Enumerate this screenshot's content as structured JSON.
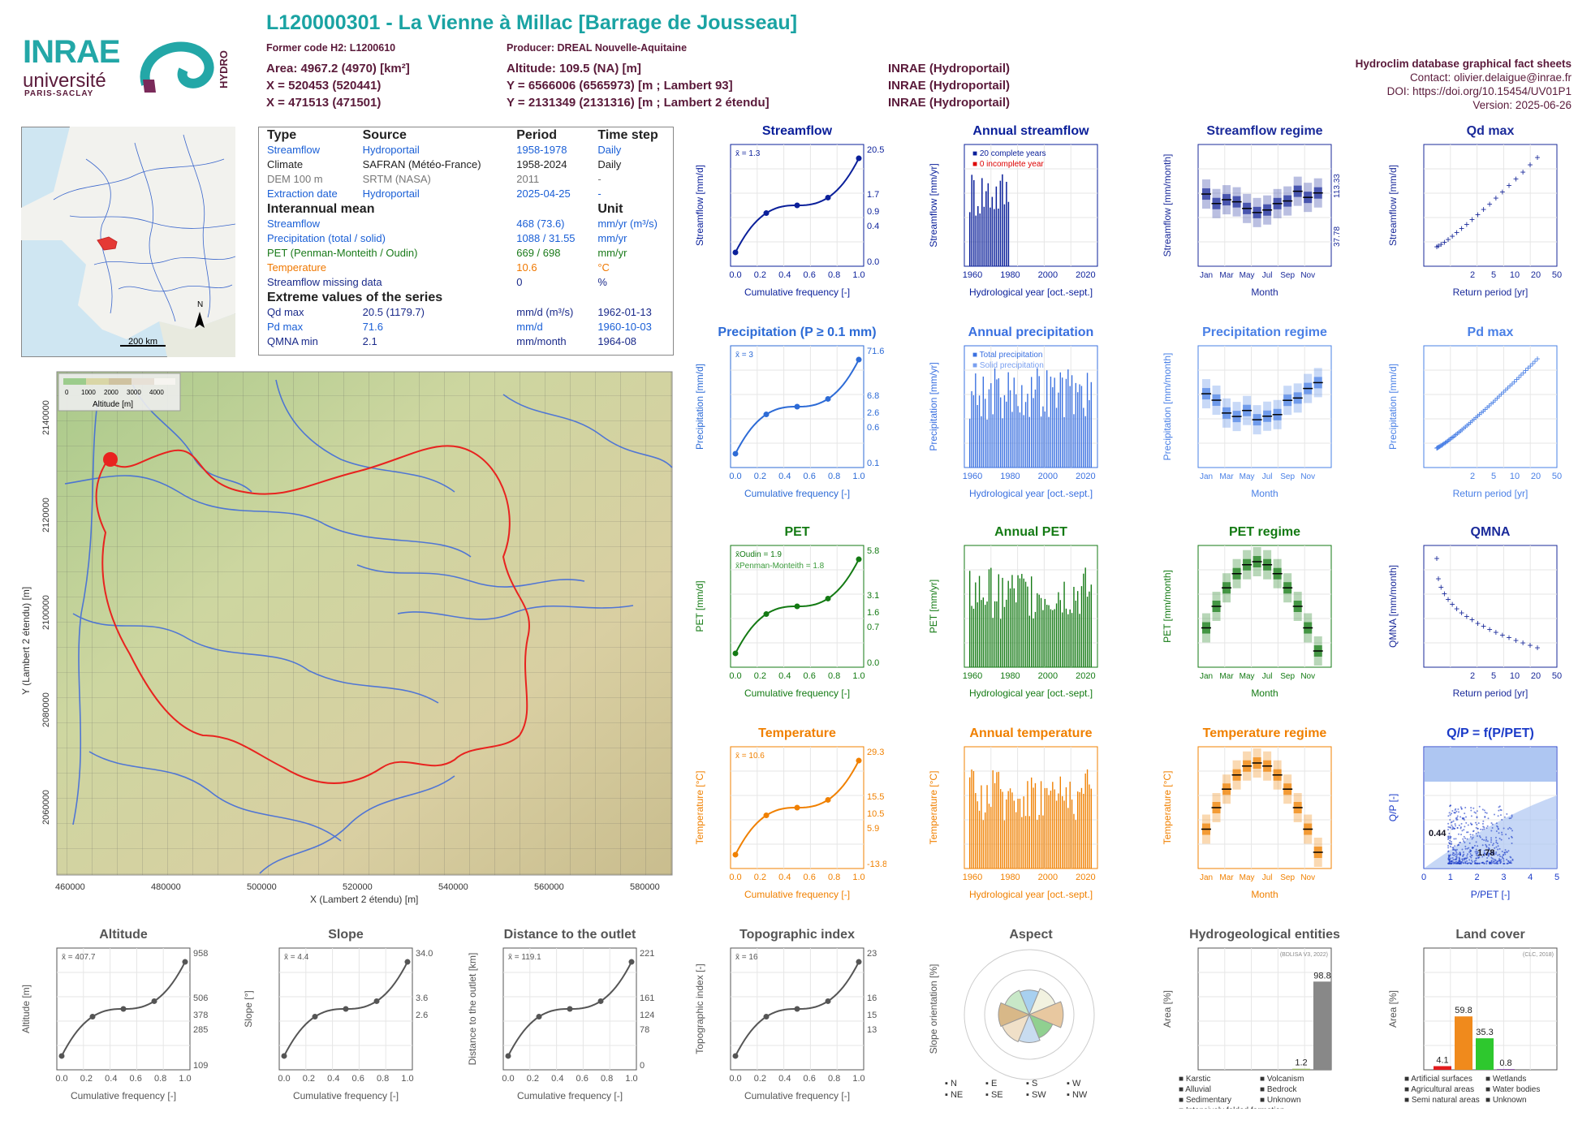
{
  "header": {
    "title": "L120000301 - La Vienne à Millac [Barrage de Jousseau]",
    "former_code": "Former code H2: L1200610",
    "producer": "Producer: DREAL Nouvelle-Aquitaine",
    "area": "Area: 4967.2 (4970) [km²]",
    "altitude": "Altitude: 109.5 (NA) [m]",
    "x93": "X = 520453 (520441)",
    "y93": "Y = 6566006 (6565973) [m ; Lambert 93]",
    "x2": "X = 471513 (471501)",
    "y2": "Y = 2131349 (2131316) [m ; Lambert 2 étendu]",
    "src1": "INRAE (Hydroportail)",
    "src2": "INRAE (Hydroportail)",
    "src3": "INRAE (Hydroportail)",
    "db": "Hydroclim database graphical fact sheets",
    "contact": "Contact: olivier.delaigue@inrae.fr",
    "doi": "DOI: https://doi.org/10.15454/UV01P1",
    "version": "Version: 2025-06-26"
  },
  "logos": {
    "inrae": "INRAE",
    "universite": "université",
    "paris_saclay": "PARIS-SACLAY",
    "hydro": "HYDRO"
  },
  "locmap": {
    "scale": "200 km",
    "north": "N"
  },
  "info": {
    "h_type": "Type",
    "h_source": "Source",
    "h_period": "Period",
    "h_step": "Time step",
    "rows": [
      {
        "type": "Streamflow",
        "source": "Hydroportail",
        "period": "1958-1978",
        "step": "Daily"
      },
      {
        "type": "Climate",
        "source": "SAFRAN (Météo-France)",
        "period": "1958-2024",
        "step": "Daily"
      },
      {
        "type": "DEM 100 m",
        "source": "SRTM (NASA)",
        "period": "2011",
        "step": "-"
      },
      {
        "type": "Extraction date",
        "source": "Hydroportail",
        "period": "2025-04-25",
        "step": "-"
      }
    ],
    "h_mean": "Interannual mean",
    "h_unit": "Unit",
    "means": [
      {
        "label": "Streamflow",
        "value": "468 (73.6)",
        "unit": "mm/yr (m³/s)"
      },
      {
        "label": "Precipitation (total / solid)",
        "value": "1088 / 31.55",
        "unit": "mm/yr"
      },
      {
        "label": "PET (Penman-Monteith / Oudin)",
        "value": "669 / 698",
        "unit": "mm/yr"
      },
      {
        "label": "Temperature",
        "value": "10.6",
        "unit": "°C"
      },
      {
        "label": "Streamflow missing data",
        "value": "0",
        "unit": "%"
      }
    ],
    "h_extreme": "Extreme values of the series",
    "extremes": [
      {
        "label": "Qd max",
        "value": "20.5 (1179.7)",
        "unit": "mm/d (m³/s)",
        "date": "1962-01-13"
      },
      {
        "label": "Pd max",
        "value": "71.6",
        "unit": "mm/d",
        "date": "1960-10-03"
      },
      {
        "label": "QMNA min",
        "value": "2.1",
        "unit": "mm/month",
        "date": "1964-08"
      }
    ]
  },
  "bigmap": {
    "xlabel": "X (Lambert 2 étendu) [m]",
    "ylabel": "Y (Lambert 2 étendu) [m]",
    "xticks": [
      "460000",
      "480000",
      "500000",
      "520000",
      "540000",
      "560000",
      "580000"
    ],
    "yticks": [
      "2060000",
      "2080000",
      "2100000",
      "2120000",
      "2140000"
    ],
    "legend_title": "Altitude [m]",
    "legend_ticks": [
      "0",
      "1000",
      "2000",
      "3000",
      "4000"
    ]
  },
  "chart_data": [
    {
      "id": "streamflow",
      "type": "line",
      "title": "Streamflow",
      "xlabel": "Cumulative frequency [-]",
      "ylabel": "Streamflow [mm/d]",
      "mean": "x̄ = 1.3",
      "right_labels": [
        "20.5",
        "1.7",
        "0.9",
        "0.4",
        "0.0"
      ]
    },
    {
      "id": "annual_streamflow",
      "type": "bar",
      "title": "Annual streamflow",
      "xlabel": "Hydrological year [oct.-sept.]",
      "ylabel": "Streamflow [mm/yr]",
      "legend": [
        "20 complete years",
        "0 incomplete year"
      ]
    },
    {
      "id": "streamflow_regime",
      "type": "box",
      "title": "Streamflow regime",
      "xlabel": "Month",
      "ylabel": "Streamflow [mm/month]",
      "right_ticks": [
        "113.33",
        "37.78"
      ]
    },
    {
      "id": "qd_max",
      "type": "scatter",
      "title": "Qd max",
      "xlabel": "Return period [yr]",
      "ylabel": "Streamflow [mm/d]"
    },
    {
      "id": "precipitation",
      "type": "line",
      "title": "Precipitation (P ≥ 0.1 mm)",
      "xlabel": "Cumulative frequency [-]",
      "ylabel": "Precipitation [mm/d]",
      "mean": "x̄ = 3",
      "right_labels": [
        "71.6",
        "6.8",
        "2.6",
        "0.6",
        "0.1"
      ]
    },
    {
      "id": "annual_precipitation",
      "type": "bar",
      "title": "Annual precipitation",
      "xlabel": "Hydrological year [oct.-sept.]",
      "ylabel": "Precipitation [mm/yr]",
      "legend": [
        "Total precipitation",
        "Solid precipitation"
      ]
    },
    {
      "id": "precipitation_regime",
      "type": "box",
      "title": "Precipitation regime",
      "xlabel": "Month",
      "ylabel": "Precipitation [mm/month]"
    },
    {
      "id": "pd_max",
      "type": "scatter",
      "title": "Pd max",
      "xlabel": "Return period [yr]",
      "ylabel": "Precipitation [mm/d]"
    },
    {
      "id": "pet",
      "type": "line",
      "title": "PET",
      "xlabel": "Cumulative frequency [-]",
      "ylabel": "PET [mm/d]",
      "mean1": "x̄Oudin = 1.9",
      "mean2": "x̄Penman-Monteith = 1.8",
      "right_labels": [
        "5.8",
        "3.1",
        "1.6",
        "0.7",
        "0.0"
      ]
    },
    {
      "id": "annual_pet",
      "type": "bar",
      "title": "Annual PET",
      "xlabel": "Hydrological year [oct.-sept.]",
      "ylabel": "PET [mm/yr]"
    },
    {
      "id": "pet_regime",
      "type": "box",
      "title": "PET regime",
      "xlabel": "Month",
      "ylabel": "PET [mm/month]"
    },
    {
      "id": "qmna",
      "type": "scatter",
      "title": "QMNA",
      "xlabel": "Return period [yr]",
      "ylabel": "QMNA [mm/month]"
    },
    {
      "id": "temperature",
      "type": "line",
      "title": "Temperature",
      "xlabel": "Cumulative frequency [-]",
      "ylabel": "Temperature [°C]",
      "mean": "x̄ = 10.6",
      "right_labels": [
        "29.3",
        "15.5",
        "10.5",
        "5.9",
        "-13.8"
      ]
    },
    {
      "id": "annual_temperature",
      "type": "bar",
      "title": "Annual temperature",
      "xlabel": "Hydrological year [oct.-sept.]",
      "ylabel": "Temperature [°C]"
    },
    {
      "id": "temperature_regime",
      "type": "box",
      "title": "Temperature regime",
      "xlabel": "Month",
      "ylabel": "Temperature [°C]"
    },
    {
      "id": "qp",
      "type": "scatter",
      "title": "Q/P = f(P/PET)",
      "xlabel": "P/PET [-]",
      "ylabel": "Q/P [-]",
      "labels": [
        "0.44",
        "1.78"
      ]
    },
    {
      "id": "altitude",
      "type": "line",
      "title": "Altitude",
      "xlabel": "Cumulative frequency [-]",
      "ylabel": "Altitude [m]",
      "mean": "x̄ = 407.7",
      "right_labels": [
        "958",
        "506",
        "378",
        "285",
        "109"
      ]
    },
    {
      "id": "slope",
      "type": "line",
      "title": "Slope",
      "xlabel": "Cumulative frequency [-]",
      "ylabel": "Slope [°]",
      "mean": "x̄ = 4.4",
      "right_labels": [
        "34.0",
        "3.6",
        "2.6"
      ]
    },
    {
      "id": "distance",
      "type": "line",
      "title": "Distance to the outlet",
      "xlabel": "Cumulative frequency [-]",
      "ylabel": "Distance to the outlet [km]",
      "mean": "x̄ = 119.1",
      "right_labels": [
        "221",
        "161",
        "124",
        "78",
        "0"
      ]
    },
    {
      "id": "topo",
      "type": "line",
      "title": "Topographic index",
      "xlabel": "Cumulative frequency [-]",
      "ylabel": "Topographic index [-]",
      "mean": "x̄ = 16",
      "right_labels": [
        "23",
        "16",
        "15",
        "13"
      ]
    },
    {
      "id": "aspect",
      "type": "pie",
      "title": "Aspect",
      "ylabel": "Slope orientation [%]",
      "legend": [
        "N",
        "E",
        "S",
        "W",
        "NE",
        "SE",
        "SW",
        "NW"
      ]
    },
    {
      "id": "hydrogeo",
      "type": "bar",
      "title": "Hydrogeological entities",
      "ylabel": "Area [%]",
      "note": "(BDLISA V3, 2022)",
      "bar_labels": [
        "1.2",
        "98.8"
      ],
      "legend": [
        "Karstic",
        "Volcanism",
        "Alluvial",
        "Bedrock",
        "Sedimentary",
        "Unknown",
        "Intensively folded formation"
      ]
    },
    {
      "id": "landcover",
      "type": "bar",
      "title": "Land cover",
      "ylabel": "Area [%]",
      "note": "(CLC, 2018)",
      "bar_labels": [
        "4.1",
        "59.8",
        "35.3",
        "0.8"
      ],
      "legend": [
        "Artificial surfaces",
        "Wetlands",
        "Agricultural areas",
        "Water bodies",
        "Semi natural areas",
        "Unknown"
      ]
    }
  ]
}
